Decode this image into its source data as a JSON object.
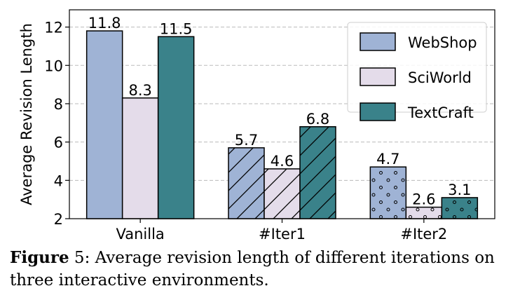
{
  "chart_data": {
    "type": "bar",
    "categories": [
      "Vanilla",
      "#Iter1",
      "#Iter2"
    ],
    "series": [
      {
        "name": "WebShop",
        "values": [
          11.8,
          5.7,
          4.7
        ],
        "color": "#9fb3d5"
      },
      {
        "name": "SciWorld",
        "values": [
          8.3,
          4.6,
          2.6
        ],
        "color": "#e4dcea"
      },
      {
        "name": "TextCraft",
        "values": [
          11.5,
          6.8,
          3.1
        ],
        "color": "#3a828a"
      }
    ],
    "category_hatches": [
      "none",
      "diagonal",
      "dots"
    ],
    "xlabel": "",
    "ylabel": "Average Revision Length",
    "ylim": [
      2,
      12.9
    ],
    "yticks": [
      2,
      4,
      6,
      8,
      10,
      12
    ],
    "grid": "horizontal dashed",
    "legend": "top-right"
  },
  "caption": {
    "label": "Figure",
    "number": " 5:",
    "text": " Average revision length of different iterations on three interactive environments."
  }
}
